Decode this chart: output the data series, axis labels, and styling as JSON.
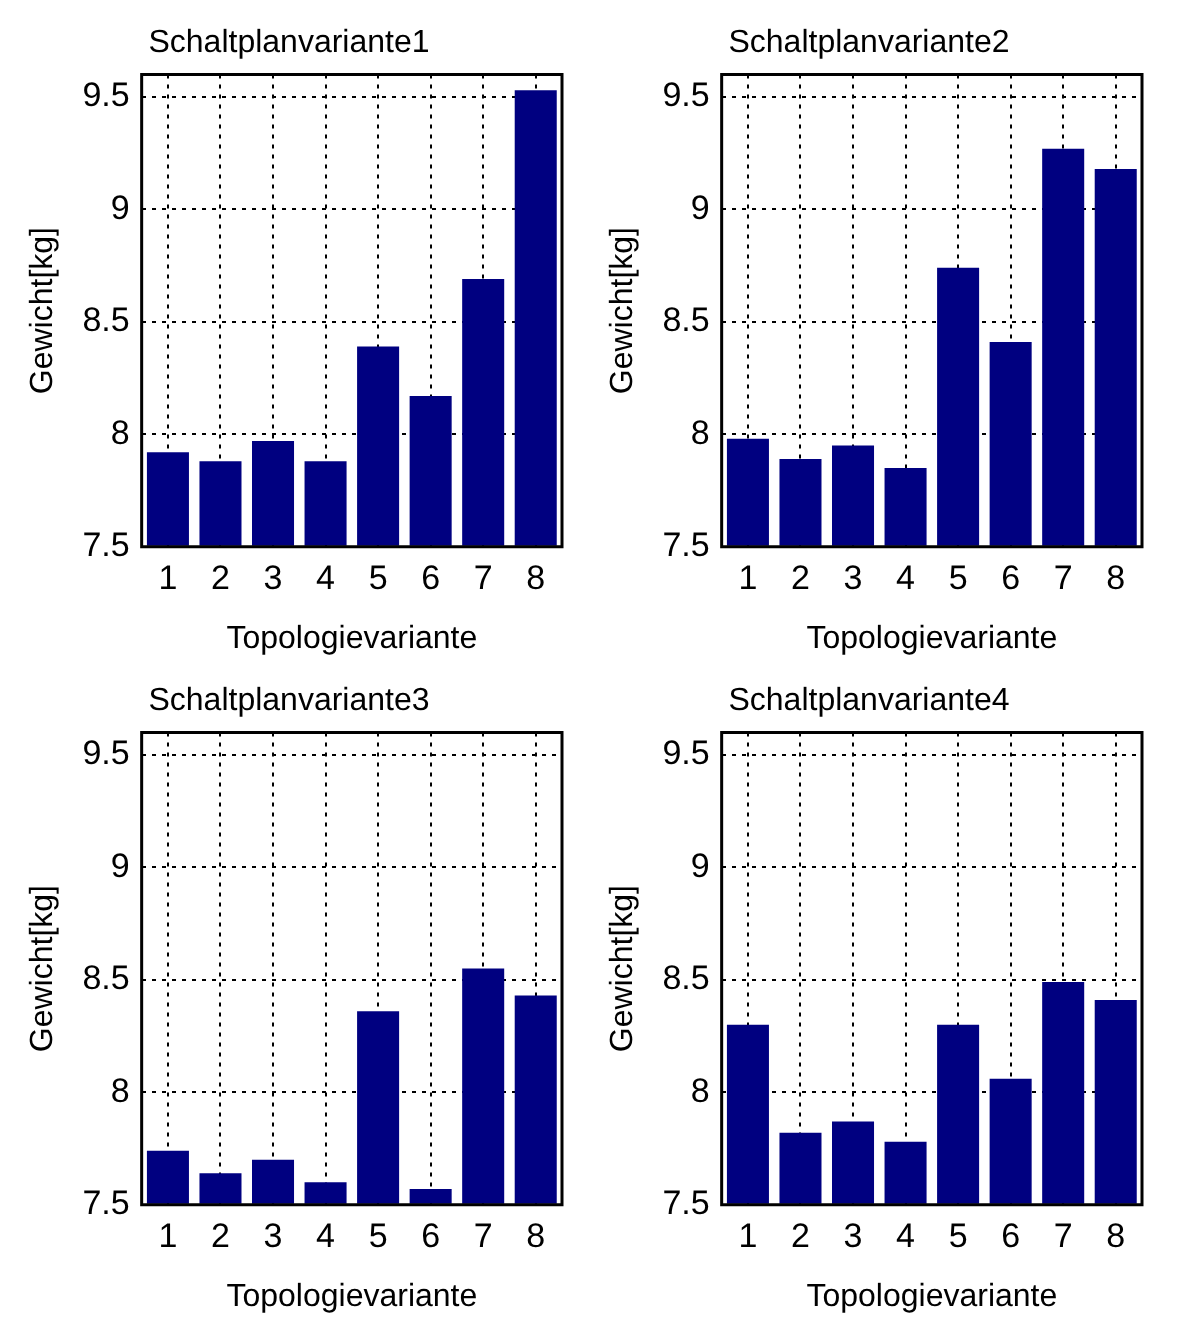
{
  "chart_data": [
    {
      "type": "bar",
      "title": "Schaltplanvariante1",
      "xlabel": "Topologievariante",
      "ylabel": "Gewicht[kg]",
      "categories": [
        "1",
        "2",
        "3",
        "4",
        "5",
        "6",
        "7",
        "8"
      ],
      "values": [
        7.92,
        7.88,
        7.97,
        7.88,
        8.39,
        8.17,
        8.69,
        9.53
      ],
      "color": "#000080",
      "ylim": [
        7.5,
        9.6
      ],
      "yticks": [
        7.5,
        8,
        8.5,
        9,
        9.5
      ],
      "grid": true
    },
    {
      "type": "bar",
      "title": "Schaltplanvariante2",
      "xlabel": "Topologievariante",
      "ylabel": "Gewicht[kg]",
      "categories": [
        "1",
        "2",
        "3",
        "4",
        "5",
        "6",
        "7",
        "8"
      ],
      "values": [
        7.98,
        7.89,
        7.95,
        7.85,
        8.74,
        8.41,
        9.27,
        9.18
      ],
      "color": "#000080",
      "ylim": [
        7.5,
        9.6
      ],
      "yticks": [
        7.5,
        8,
        8.5,
        9,
        9.5
      ],
      "grid": true
    },
    {
      "type": "bar",
      "title": "Schaltplanvariante3",
      "xlabel": "Topologievariante",
      "ylabel": "Gewicht[kg]",
      "categories": [
        "1",
        "2",
        "3",
        "4",
        "5",
        "6",
        "7",
        "8"
      ],
      "values": [
        7.74,
        7.64,
        7.7,
        7.6,
        8.36,
        7.57,
        8.55,
        8.43
      ],
      "color": "#000080",
      "ylim": [
        7.5,
        9.6
      ],
      "yticks": [
        7.5,
        8,
        8.5,
        9,
        9.5
      ],
      "grid": true
    },
    {
      "type": "bar",
      "title": "Schaltplanvariante4",
      "xlabel": "Topologievariante",
      "ylabel": "Gewicht[kg]",
      "categories": [
        "1",
        "2",
        "3",
        "4",
        "5",
        "6",
        "7",
        "8"
      ],
      "values": [
        8.3,
        7.82,
        7.87,
        7.78,
        8.3,
        8.06,
        8.49,
        8.41
      ],
      "color": "#000080",
      "ylim": [
        7.5,
        9.6
      ],
      "yticks": [
        7.5,
        8,
        8.5,
        9,
        9.5
      ],
      "grid": true
    }
  ]
}
